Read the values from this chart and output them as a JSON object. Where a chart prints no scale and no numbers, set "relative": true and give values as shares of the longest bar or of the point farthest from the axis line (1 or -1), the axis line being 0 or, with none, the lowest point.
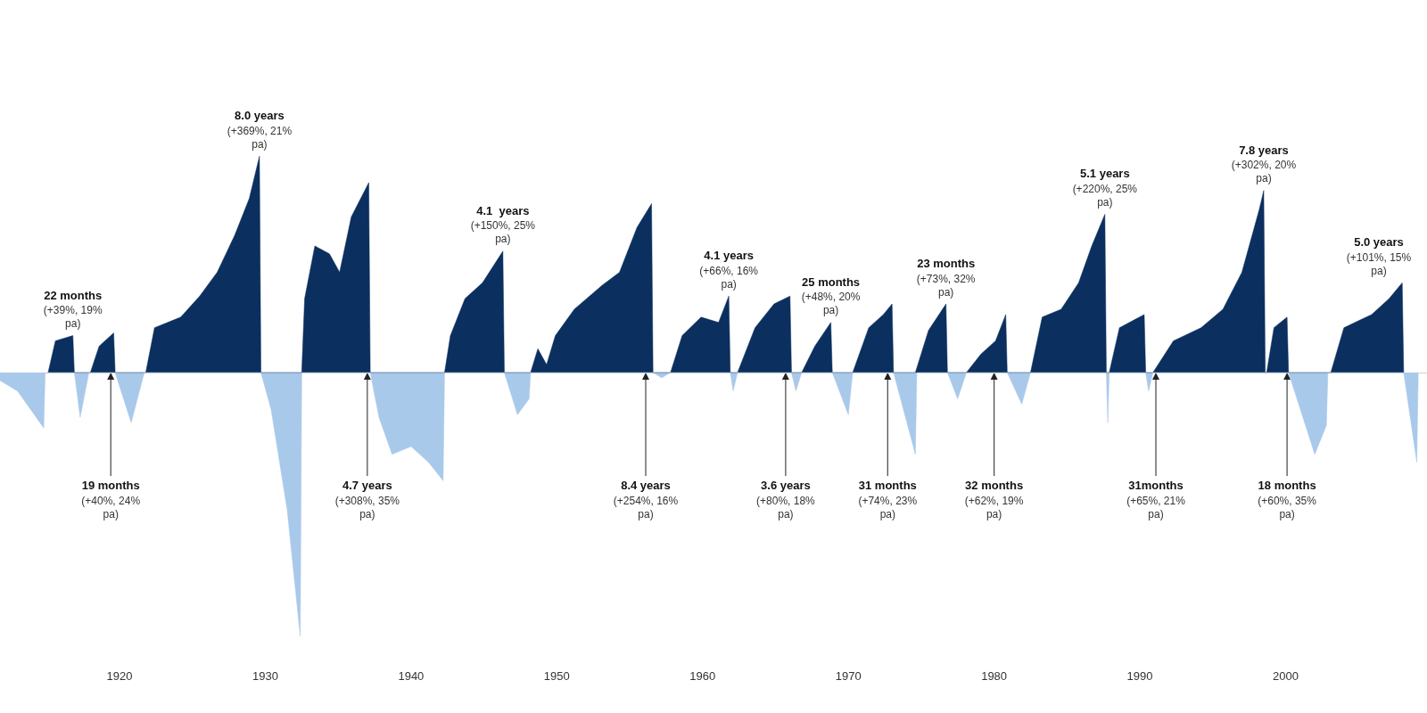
{
  "chart_data": {
    "type": "area",
    "relative": true,
    "xlim": [
      1911.8,
      2009.7
    ],
    "xticks": [
      1920,
      1930,
      1940,
      1950,
      1960,
      1970,
      1980,
      1990,
      2000
    ],
    "grid": false,
    "series": [
      {
        "color": "#0b2f5e",
        "x": [
          1915.1,
          1915.6,
          1916.8,
          1916.9,
          1918.0,
          1918.6,
          1919.6,
          1919.7,
          1921.8,
          1922.4,
          1923.3,
          1924.2,
          1925.5,
          1926.7,
          1927.9,
          1928.9,
          1929.6,
          1929.7,
          1932.5,
          1932.7,
          1933.4,
          1934.4,
          1935.1,
          1935.9,
          1937.1,
          1937.2,
          1942.3,
          1942.7,
          1943.7,
          1944.9,
          1946.3,
          1946.4,
          1948.2,
          1948.7,
          1949.3,
          1949.9,
          1951.2,
          1953.1,
          1954.3,
          1955.5,
          1956.5,
          1956.6,
          1957.8,
          1958.6,
          1959.9,
          1961.1,
          1961.8,
          1961.9,
          1962.4,
          1963.6,
          1964.9,
          1966.0,
          1966.1,
          1966.8,
          1967.7,
          1968.8,
          1968.9,
          1970.3,
          1971.4,
          1972.4,
          1973.0,
          1973.1,
          1974.6,
          1975.5,
          1976.7,
          1976.8,
          1978.1,
          1979.1,
          1980.1,
          1980.8,
          1980.9,
          1982.5,
          1983.3,
          1984.6,
          1985.8,
          1986.7,
          1987.6,
          1987.7,
          1987.9,
          1988.6,
          1990.3,
          1990.4,
          1990.9,
          1992.3,
          1994.2,
          1995.7,
          1997.0,
          1998.2,
          1998.5,
          1998.6,
          1998.7,
          1999.2,
          2000.1,
          2000.2,
          2003.1,
          2004.0,
          2005.9,
          2007.1,
          2008.0,
          2008.1
        ],
        "values": [
          0,
          0.12,
          0.14,
          0,
          0,
          0.1,
          0.15,
          0,
          0,
          0.17,
          0.19,
          0.21,
          0.29,
          0.38,
          0.52,
          0.66,
          0.82,
          0,
          0,
          0.28,
          0.48,
          0.45,
          0.38,
          0.59,
          0.72,
          0,
          0,
          0.14,
          0.28,
          0.34,
          0.46,
          0,
          0,
          0.09,
          0.03,
          0.14,
          0.24,
          0.33,
          0.38,
          0.55,
          0.64,
          0,
          0,
          0.14,
          0.21,
          0.19,
          0.29,
          0,
          0,
          0.17,
          0.26,
          0.29,
          0,
          0,
          0.1,
          0.19,
          0,
          0,
          0.17,
          0.22,
          0.26,
          0,
          0,
          0.16,
          0.26,
          0,
          0,
          0.07,
          0.12,
          0.22,
          0,
          0,
          0.21,
          0.24,
          0.34,
          0.48,
          0.6,
          0,
          0,
          0.17,
          0.22,
          0,
          0,
          0.12,
          0.17,
          0.24,
          0.38,
          0.62,
          0.69,
          0,
          0,
          0.17,
          0.21,
          0,
          0,
          0.17,
          0.22,
          0.28,
          0.34,
          0
        ]
      },
      {
        "color": "#a9c9ea",
        "x": [
          1911.8,
          1913.0,
          1914.8,
          1914.9,
          1916.9,
          1917.3,
          1917.9,
          1919.7,
          1920.8,
          1921.7,
          1929.7,
          1930.4,
          1931.5,
          1932.4,
          1932.5,
          1937.2,
          1937.8,
          1938.7,
          1940.0,
          1941.2,
          1942.2,
          1942.3,
          1946.4,
          1947.3,
          1948.1,
          1948.2,
          1956.6,
          1957.2,
          1957.8,
          1961.9,
          1962.1,
          1962.4,
          1966.1,
          1966.4,
          1966.8,
          1968.9,
          1970.0,
          1970.3,
          1973.1,
          1974.6,
          1974.7,
          1976.8,
          1977.5,
          1978.1,
          1980.9,
          1981.9,
          1982.5,
          1987.7,
          1987.8,
          1987.9,
          1990.4,
          1990.6,
          1990.9,
          2000.2,
          2002.0,
          2002.8,
          2002.9,
          2008.1,
          2009.0,
          2009.1
        ],
        "values": [
          -0.03,
          -0.07,
          -0.21,
          0,
          0,
          -0.17,
          0,
          0,
          -0.19,
          0,
          0,
          -0.14,
          -0.52,
          -1,
          0,
          0,
          -0.17,
          -0.31,
          -0.28,
          -0.34,
          -0.41,
          0,
          0,
          -0.16,
          -0.1,
          0,
          0,
          -0.02,
          0,
          0,
          -0.07,
          0,
          0,
          -0.07,
          0,
          0,
          -0.16,
          0,
          0,
          -0.31,
          0,
          0,
          -0.1,
          0,
          0,
          -0.12,
          0,
          0,
          -0.19,
          0,
          0,
          -0.07,
          0,
          0,
          -0.31,
          -0.2,
          0,
          0,
          -0.34,
          0
        ]
      }
    ],
    "annotations": [
      {
        "text": "8.0 years (+369%, 21% pa)",
        "x": 1929.6,
        "y": 0.82
      },
      {
        "text": "22 months (+39%, 19% pa)",
        "x": 1916.8,
        "y": 0.14
      },
      {
        "text": "4.1  years (+150%, 25% pa)",
        "x": 1946.3,
        "y": 0.46
      },
      {
        "text": "4.1 years (+66%, 16% pa)",
        "x": 1961.8,
        "y": 0.29
      },
      {
        "text": "25 months (+48%, 20% pa)",
        "x": 1968.8,
        "y": 0.19
      },
      {
        "text": "23 months (+73%, 32% pa)",
        "x": 1976.7,
        "y": 0.26
      },
      {
        "text": "5.1 years (+220%, 25% pa)",
        "x": 1987.6,
        "y": 0.6
      },
      {
        "text": "7.8 years (+302%, 20% pa)",
        "x": 1998.5,
        "y": 0.69
      },
      {
        "text": "5.0 years (+101%, 15% pa)",
        "x": 2008.0,
        "y": 0.34
      },
      {
        "text": "19 months (+40%, 24% pa)",
        "x": 1919.4,
        "y": 0
      },
      {
        "text": "4.7 years (+308%, 35% pa)",
        "x": 1937.0,
        "y": 0
      },
      {
        "text": "8.4 years (+254%, 16% pa)",
        "x": 1956.1,
        "y": 0
      },
      {
        "text": "3.6 years (+80%, 18% pa)",
        "x": 1965.7,
        "y": 0
      },
      {
        "text": "31 months (+74%, 23% pa)",
        "x": 1972.7,
        "y": 0
      },
      {
        "text": "32 months (+62%, 19% pa)",
        "x": 1980.0,
        "y": 0
      },
      {
        "text": "31months (+65%, 21% pa)",
        "x": 1991.1,
        "y": 0
      },
      {
        "text": "18 months (+60%, 35% pa)",
        "x": 2000.1,
        "y": 0
      }
    ]
  }
}
